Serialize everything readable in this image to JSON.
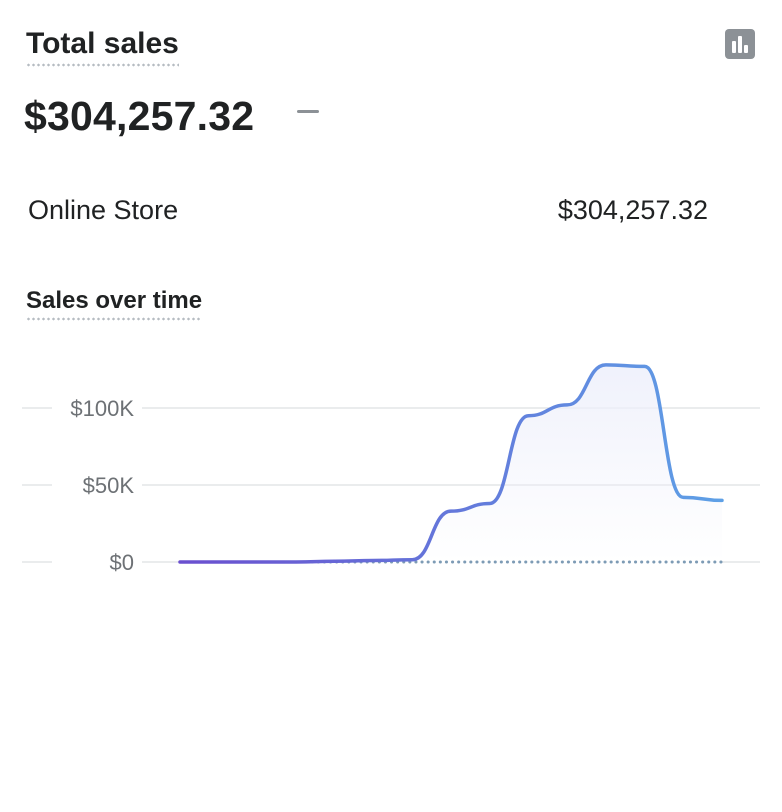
{
  "card": {
    "title": "Total sales",
    "total": "$304,257.32",
    "chart_type_icon": "bar-chart-icon"
  },
  "breakdown": [
    {
      "label": "Online Store",
      "value": "$304,257.32"
    }
  ],
  "chart_section": {
    "title": "Sales over time"
  },
  "colors": {
    "line_start": "#6a4fcf",
    "line_end": "#5ea0e6",
    "comparison_dotted": "#7d9bb5",
    "gridline": "#e4e5e7",
    "area_fill": "#eef0fb"
  },
  "chart_data": {
    "type": "line",
    "title": "Sales over time",
    "xlabel": "",
    "ylabel": "",
    "ylim": [
      0,
      130000
    ],
    "yticks": [
      0,
      50000,
      100000
    ],
    "ytick_labels": [
      "$0",
      "$50K",
      "$100K"
    ],
    "grid": true,
    "legend": "none",
    "x": [
      0,
      1,
      2,
      3,
      4,
      5,
      6,
      7,
      8,
      9,
      10,
      11,
      12,
      13,
      14
    ],
    "series": [
      {
        "values": [
          0,
          0,
          0,
          0,
          500,
          1000,
          1500,
          33000,
          38000,
          95000,
          102000,
          128000,
          127000,
          42000,
          40000
        ]
      },
      {
        "values": [
          0,
          0,
          0,
          0,
          0,
          0,
          0,
          0,
          0,
          0,
          0,
          0,
          0,
          0,
          0
        ],
        "style": "dotted"
      }
    ]
  }
}
